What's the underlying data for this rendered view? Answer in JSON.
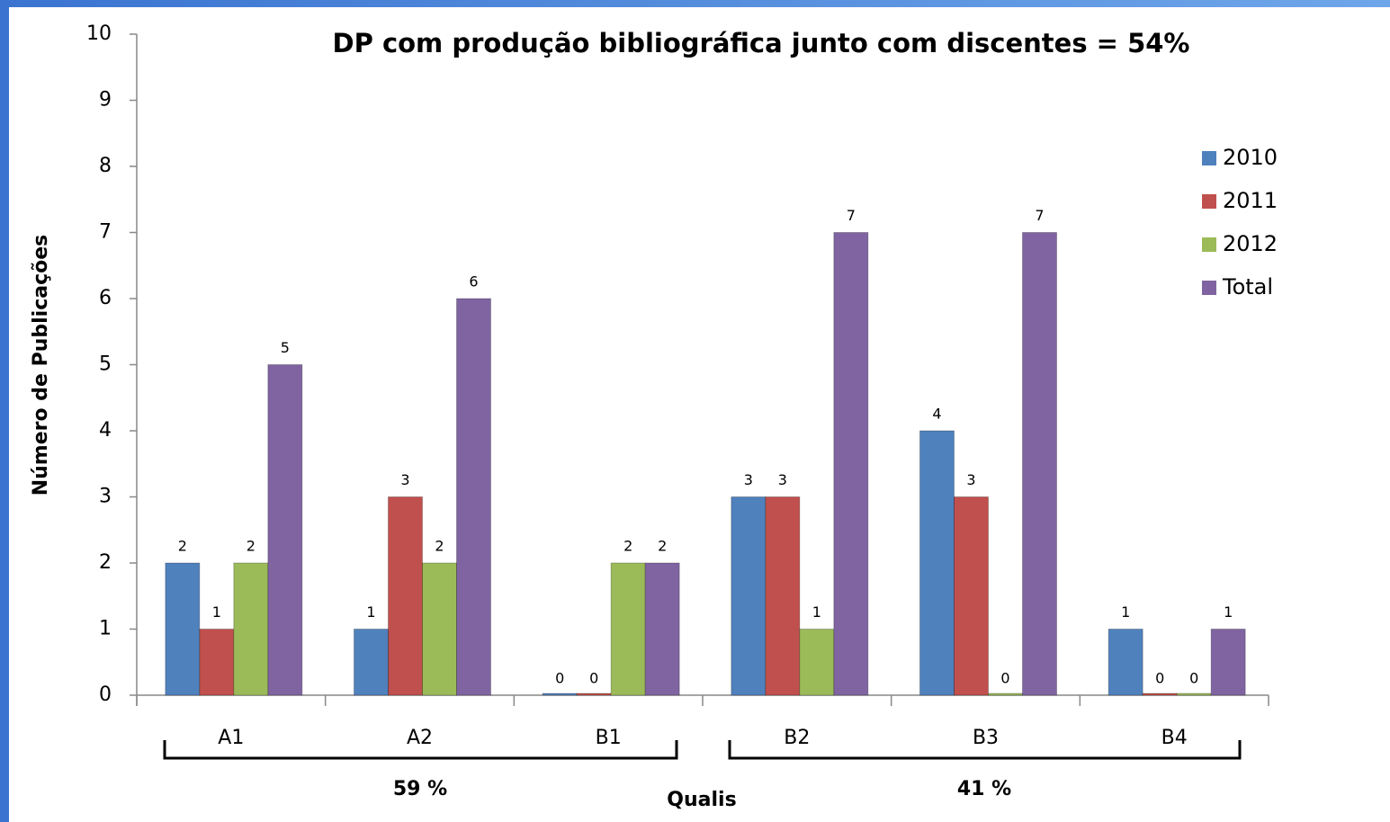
{
  "chart_data": {
    "type": "bar",
    "title": "DP com produção bibliográfica junto com discentes = 54%",
    "x_label": "Qualis",
    "y_label": "Número de Publicações",
    "categories": [
      "A1",
      "A2",
      "B1",
      "B2",
      "B3",
      "B4"
    ],
    "series": [
      {
        "name": "2010",
        "color": "#4f81bd",
        "values": [
          2,
          1,
          0,
          3,
          4,
          1
        ]
      },
      {
        "name": "2011",
        "color": "#c0504d",
        "values": [
          1,
          3,
          0,
          3,
          3,
          0
        ]
      },
      {
        "name": "2012",
        "color": "#9bbb59",
        "values": [
          2,
          2,
          2,
          1,
          0,
          0
        ]
      },
      {
        "name": "Total",
        "color": "#8064a2",
        "values": [
          5,
          6,
          2,
          7,
          7,
          1
        ]
      }
    ],
    "annotations": [
      "59 %",
      "41 %"
    ],
    "ylim": [
      0,
      10
    ],
    "yticks": [
      0,
      1,
      2,
      3,
      4,
      5,
      6,
      7,
      8,
      9,
      10
    ],
    "grid": false,
    "legend": "right"
  }
}
